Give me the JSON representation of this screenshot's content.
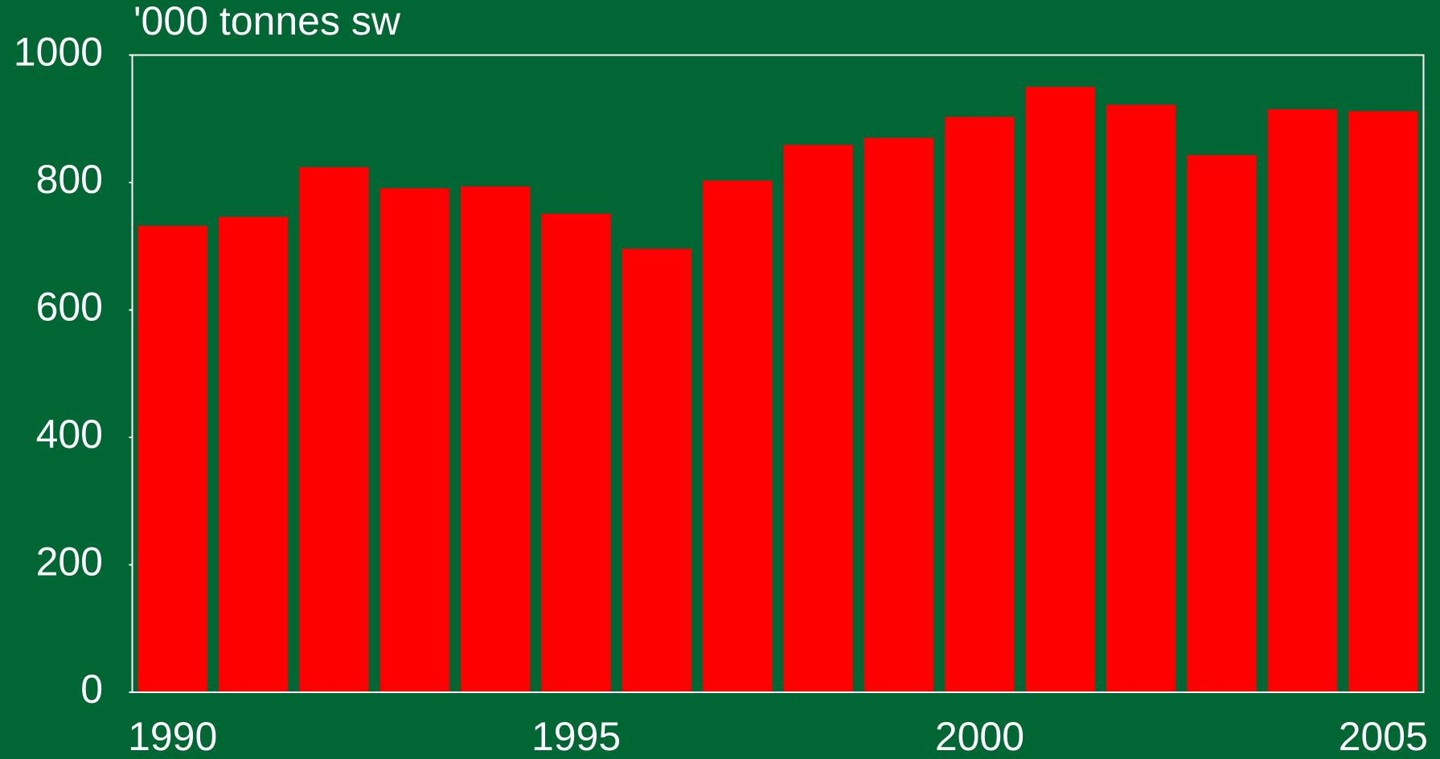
{
  "chart_data": {
    "type": "bar",
    "ylabel": "'000 tonnes sw",
    "categories": [
      "1990",
      null,
      null,
      null,
      null,
      "1995",
      null,
      null,
      null,
      null,
      "2000",
      null,
      null,
      null,
      null,
      "2005"
    ],
    "values": [
      732,
      746,
      824,
      791,
      794,
      751,
      696,
      803,
      859,
      870,
      903,
      950,
      922,
      843,
      915,
      912
    ],
    "color": "#ff0000",
    "background": "#006633",
    "ylim": [
      0,
      1000
    ],
    "yticks": [
      0,
      200,
      400,
      600,
      800,
      1000
    ],
    "grid": false
  }
}
